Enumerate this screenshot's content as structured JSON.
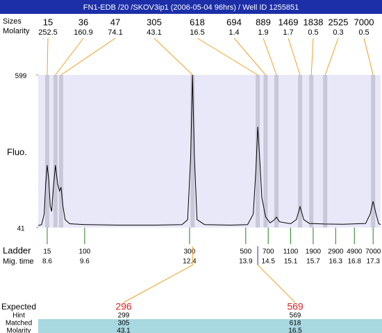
{
  "chart_data": {
    "type": "line",
    "title": "FN1-EDB /20 /SKOV3ip1 (2006-05-04 96hrs) / Well ID 1255851",
    "size_label": "Sizes",
    "molarity_label": "Molarity",
    "y_label": "Fluo.",
    "ylim": [
      41,
      599
    ],
    "yticks": [
      41,
      599
    ],
    "xlim": [
      8.36,
      17.5
    ],
    "x": [
      8.36,
      8.45,
      8.52,
      8.56,
      8.6,
      8.64,
      8.68,
      8.72,
      8.76,
      8.82,
      8.88,
      8.93,
      8.97,
      9.02,
      9.08,
      9.2,
      9.6,
      10.5,
      11.5,
      12.2,
      12.35,
      12.43,
      12.48,
      12.53,
      12.6,
      12.8,
      13.5,
      13.95,
      14.1,
      14.17,
      14.22,
      14.27,
      14.33,
      14.43,
      14.55,
      14.65,
      14.72,
      14.8,
      15.1,
      15.25,
      15.35,
      15.45,
      15.6,
      16.0,
      16.5,
      17.1,
      17.22,
      17.3,
      17.38,
      17.45,
      17.5
    ],
    "series": [
      {
        "color": "#000000",
        "values": [
          48,
          52,
          90,
          200,
          269,
          220,
          120,
          100,
          180,
          269,
          200,
          175,
          188,
          120,
          70,
          55,
          52,
          50,
          50,
          52,
          70,
          300,
          599,
          300,
          70,
          52,
          50,
          52,
          90,
          250,
          409,
          300,
          150,
          80,
          58,
          68,
          79,
          62,
          55,
          70,
          117,
          70,
          56,
          54,
          53,
          56,
          90,
          137,
          90,
          55,
          52
        ]
      }
    ],
    "peaks": {
      "sizes": [
        15,
        36,
        47,
        305,
        618,
        694,
        889,
        1469,
        1838,
        2525,
        7000
      ],
      "molarities": [
        252.5,
        160.9,
        74.1,
        43.1,
        16.5,
        1.4,
        1.9,
        1.7,
        0.5,
        0.3,
        0.5
      ],
      "times": [
        8.6,
        8.82,
        8.97,
        12.48,
        14.22,
        14.43,
        14.72,
        15.35,
        15.65,
        16.02,
        17.3
      ]
    },
    "ladder": {
      "label": "Ladder",
      "time_label": "Mig. time",
      "sizes": [
        15,
        100,
        300,
        500,
        700,
        1100,
        1900,
        2900,
        4900,
        7000
      ],
      "times": [
        8.6,
        9.6,
        12.4,
        13.9,
        14.5,
        15.1,
        15.7,
        16.3,
        16.8,
        17.3
      ]
    },
    "table": {
      "row_labels": [
        "Expected",
        "Hint",
        "Matched",
        "Molarity"
      ],
      "expected": [
        296,
        569
      ],
      "hint": [
        299,
        569
      ],
      "matched": [
        305,
        618
      ],
      "molarity": [
        43.1,
        16.5
      ]
    }
  }
}
